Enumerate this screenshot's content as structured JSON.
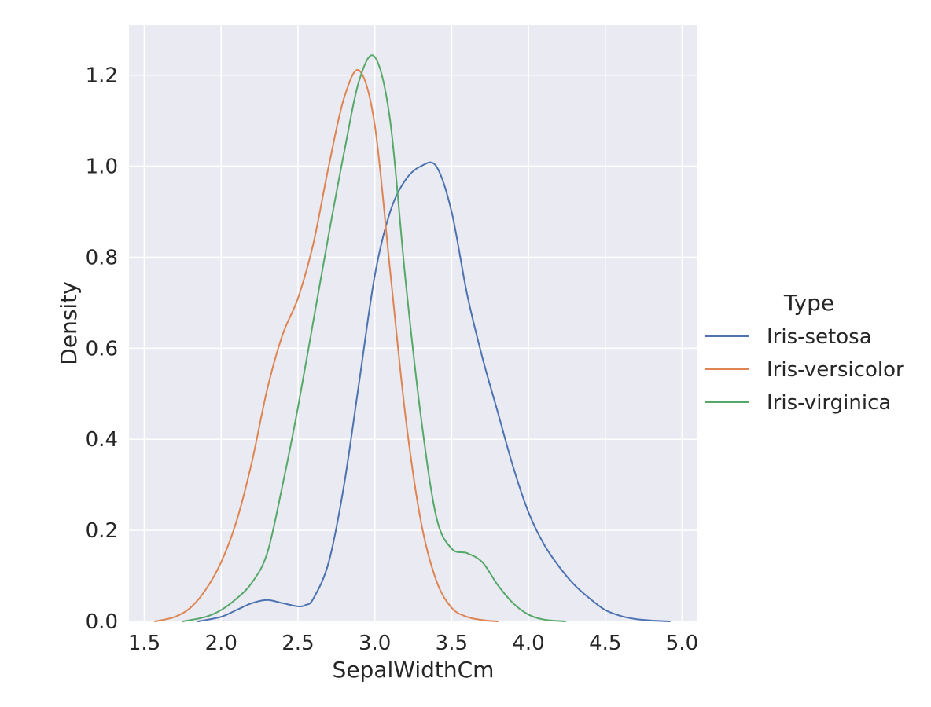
{
  "chart_data": {
    "type": "line",
    "xlabel": "SepalWidthCm",
    "ylabel": "Density",
    "xlim": [
      1.4,
      5.1
    ],
    "ylim": [
      0.0,
      1.31
    ],
    "xticks": [
      1.5,
      2.0,
      2.5,
      3.0,
      3.5,
      4.0,
      4.5,
      5.0
    ],
    "yticks": [
      0.0,
      0.2,
      0.4,
      0.6,
      0.8,
      1.0,
      1.2
    ],
    "xtick_labels": [
      "1.5",
      "2.0",
      "2.5",
      "3.0",
      "3.5",
      "4.0",
      "4.5",
      "5.0"
    ],
    "ytick_labels": [
      "0.0",
      "0.2",
      "0.4",
      "0.6",
      "0.8",
      "1.0",
      "1.2"
    ],
    "grid": true,
    "background": "#eaeaf2",
    "legend": {
      "title": "Type",
      "placement": "outside-right"
    },
    "series": [
      {
        "name": "Iris-setosa",
        "color": "#4c72b0",
        "x": [
          1.85,
          2.0,
          2.1,
          2.2,
          2.3,
          2.4,
          2.5,
          2.55,
          2.6,
          2.7,
          2.8,
          2.9,
          3.0,
          3.1,
          3.2,
          3.3,
          3.4,
          3.5,
          3.6,
          3.7,
          3.8,
          3.9,
          4.0,
          4.1,
          4.2,
          4.3,
          4.4,
          4.5,
          4.6,
          4.7,
          4.8,
          4.92
        ],
        "y": [
          0.0,
          0.01,
          0.025,
          0.04,
          0.047,
          0.04,
          0.033,
          0.036,
          0.05,
          0.13,
          0.3,
          0.53,
          0.76,
          0.9,
          0.97,
          1.0,
          1.0,
          0.9,
          0.72,
          0.58,
          0.46,
          0.34,
          0.24,
          0.17,
          0.12,
          0.08,
          0.05,
          0.025,
          0.012,
          0.005,
          0.002,
          0.0
        ]
      },
      {
        "name": "Iris-versicolor",
        "color": "#dd8452",
        "x": [
          1.57,
          1.7,
          1.8,
          1.9,
          2.0,
          2.1,
          2.2,
          2.3,
          2.4,
          2.5,
          2.6,
          2.7,
          2.8,
          2.9,
          3.0,
          3.1,
          3.2,
          3.3,
          3.4,
          3.5,
          3.6,
          3.7,
          3.8
        ],
        "y": [
          0.0,
          0.01,
          0.03,
          0.07,
          0.13,
          0.22,
          0.35,
          0.51,
          0.63,
          0.71,
          0.83,
          1.0,
          1.15,
          1.21,
          1.09,
          0.77,
          0.45,
          0.22,
          0.09,
          0.03,
          0.01,
          0.003,
          0.0
        ]
      },
      {
        "name": "Iris-virginica",
        "color": "#55a868",
        "x": [
          1.75,
          1.9,
          2.0,
          2.1,
          2.2,
          2.3,
          2.4,
          2.5,
          2.6,
          2.7,
          2.8,
          2.9,
          3.0,
          3.1,
          3.2,
          3.3,
          3.4,
          3.5,
          3.6,
          3.7,
          3.8,
          3.9,
          4.0,
          4.1,
          4.24
        ],
        "y": [
          0.0,
          0.01,
          0.025,
          0.05,
          0.085,
          0.15,
          0.3,
          0.47,
          0.66,
          0.85,
          1.03,
          1.19,
          1.24,
          1.1,
          0.75,
          0.45,
          0.23,
          0.16,
          0.15,
          0.13,
          0.08,
          0.04,
          0.015,
          0.004,
          0.0
        ]
      }
    ]
  }
}
